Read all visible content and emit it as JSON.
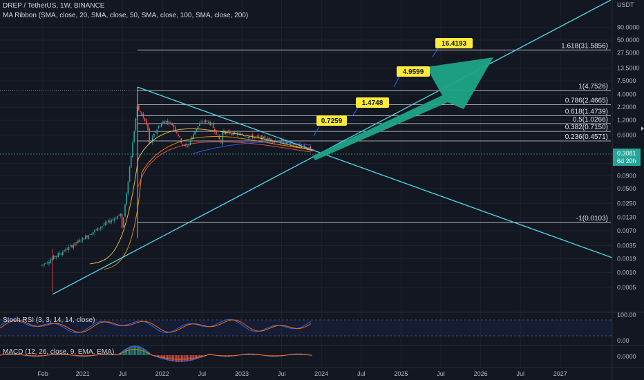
{
  "header": {
    "symbol_line": "DREP / TetherUS, 1W, BINANCE",
    "ma_line": "MA Ribbon (SMA, close, 20, SMA, close, 50, SMA, close, 100, SMA, close, 200)"
  },
  "price_axis": {
    "currency": "USDT",
    "ticks": [
      "90.0000",
      "50.0000",
      "27.5000",
      "13.5000",
      "7.5000",
      "4.0000",
      "2.2000",
      "1.2000",
      "0.6000",
      "0.3081",
      "0.1600",
      "0.0900",
      "0.0500",
      "0.0250",
      "0.0130",
      "0.0070",
      "0.0035",
      "0.0019",
      "0.0010",
      "0.0005"
    ],
    "tick_values": [
      90,
      50,
      27.5,
      13.5,
      7.5,
      4,
      2.2,
      1.2,
      0.6,
      0.3081,
      0.16,
      0.09,
      0.05,
      0.025,
      0.013,
      0.007,
      0.0035,
      0.0019,
      0.001,
      0.0005
    ],
    "current_price": "0.3081",
    "countdown": "6d 20h",
    "current_color": "#26a69a"
  },
  "time_axis": {
    "labels": [
      "Feb",
      "2021",
      "Jul",
      "2022",
      "Jul",
      "2023",
      "Jul",
      "2024",
      "Jul",
      "2025",
      "Jul",
      "2026",
      "Jul",
      "2027"
    ]
  },
  "fib_levels": [
    {
      "label": "1.618(31.5856)",
      "price": 31.5856
    },
    {
      "label": "1(4.7526)",
      "price": 4.7526
    },
    {
      "label": "0.786(2.4665)",
      "price": 2.4665
    },
    {
      "label": "0.618(1.4739)",
      "price": 1.4739
    },
    {
      "label": "0.5(1.0266)",
      "price": 1.0266
    },
    {
      "label": "0.382(0.7150)",
      "price": 0.715
    },
    {
      "label": "0.236(0.4571)",
      "price": 0.4571
    },
    {
      "label": "-1(0.0103)",
      "price": 0.0103
    }
  ],
  "targets": [
    {
      "label": "0.7259"
    },
    {
      "label": "1.4748"
    },
    {
      "label": "4.9599"
    },
    {
      "label": "16.4193"
    }
  ],
  "colors": {
    "background": "#131722",
    "up": "#26a69a",
    "down": "#ef5350",
    "trendline": "#4dd0e1",
    "arrow": "#1ea488",
    "callout": "#ffeb3b",
    "fib": "#d1d4dc"
  },
  "stoch": {
    "title": "Stoch RSI (3, 3, 14, 14, close)",
    "ticks": [
      "100.00",
      "0.00"
    ]
  },
  "macd": {
    "title": "MACD (12, 26, close, 9, EMA, EMA)",
    "tick": "0.0000"
  }
}
